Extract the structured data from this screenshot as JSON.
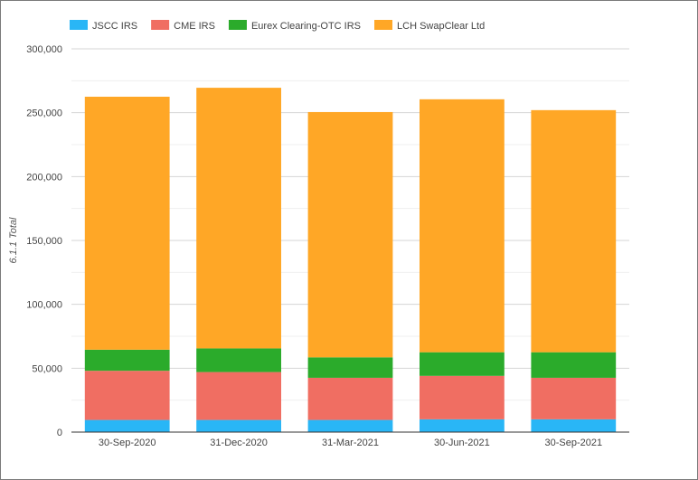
{
  "chart_data": {
    "type": "bar",
    "stacked": true,
    "categories": [
      "30-Sep-2020",
      "31-Dec-2020",
      "31-Mar-2021",
      "30-Jun-2021",
      "30-Sep-2021"
    ],
    "series": [
      {
        "name": "JSCC IRS",
        "color": "#29b6f6",
        "values": [
          9500,
          9500,
          9500,
          10000,
          10000
        ]
      },
      {
        "name": "CME IRS",
        "color": "#f06e62",
        "values": [
          38500,
          37500,
          33000,
          34000,
          32500
        ]
      },
      {
        "name": "Eurex Clearing-OTC IRS",
        "color": "#2bab2b",
        "values": [
          16500,
          18500,
          16000,
          18500,
          20000
        ]
      },
      {
        "name": "LCH SwapClear Ltd",
        "color": "#ffa726",
        "values": [
          198000,
          204000,
          192000,
          198000,
          189500
        ]
      }
    ],
    "ylabel": "6.1.1 Total",
    "xlabel": "",
    "ylim": [
      0,
      300000
    ],
    "yticks": [
      0,
      50000,
      100000,
      150000,
      200000,
      250000,
      300000
    ],
    "ytick_labels": [
      "0",
      "50,000",
      "100,000",
      "150,000",
      "200,000",
      "250,000",
      "300,000"
    ],
    "grid": true,
    "legend_position": "top-left"
  }
}
